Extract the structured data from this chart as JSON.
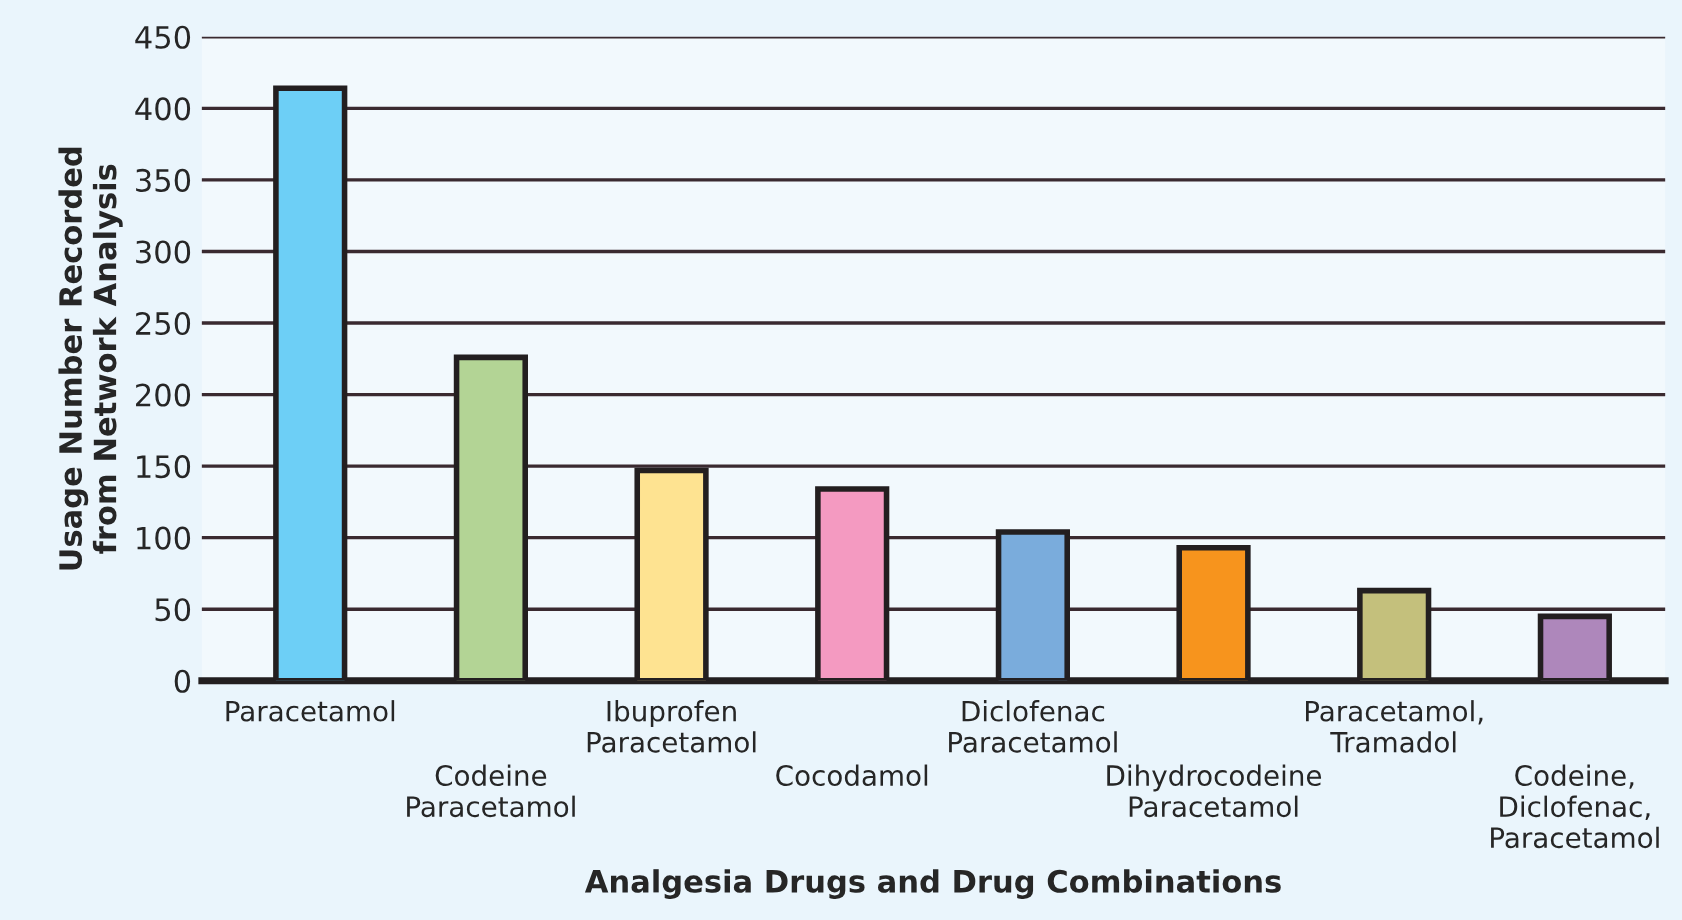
{
  "chart_data": {
    "type": "bar",
    "xlabel": "Analgesia Drugs and Drug Combinations",
    "ylabel": "Usage Number Recorded\nfrom Network Analysis",
    "categories": [
      "Paracetamol",
      "Codeine\nParacetamol",
      "Ibuprofen\nParacetamol",
      "Cocodamol",
      "Diclofenac\nParacetamol",
      "Dihydrocodeine\nParacetamol",
      "Paracetamol,\nTramadol",
      "Codeine,\nDiclofenac,\nParacetamol"
    ],
    "values": [
      414,
      226,
      147,
      134,
      104,
      93,
      63,
      45
    ],
    "colors": [
      "#6dcff6",
      "#b3d495",
      "#fee391",
      "#f49ac1",
      "#7aacdc",
      "#f7941d",
      "#c4c07c",
      "#ae87bb"
    ],
    "ylim": [
      0,
      450
    ],
    "yticks": [
      0,
      50,
      100,
      150,
      200,
      250,
      300,
      350,
      400,
      450
    ],
    "grid": "y"
  }
}
